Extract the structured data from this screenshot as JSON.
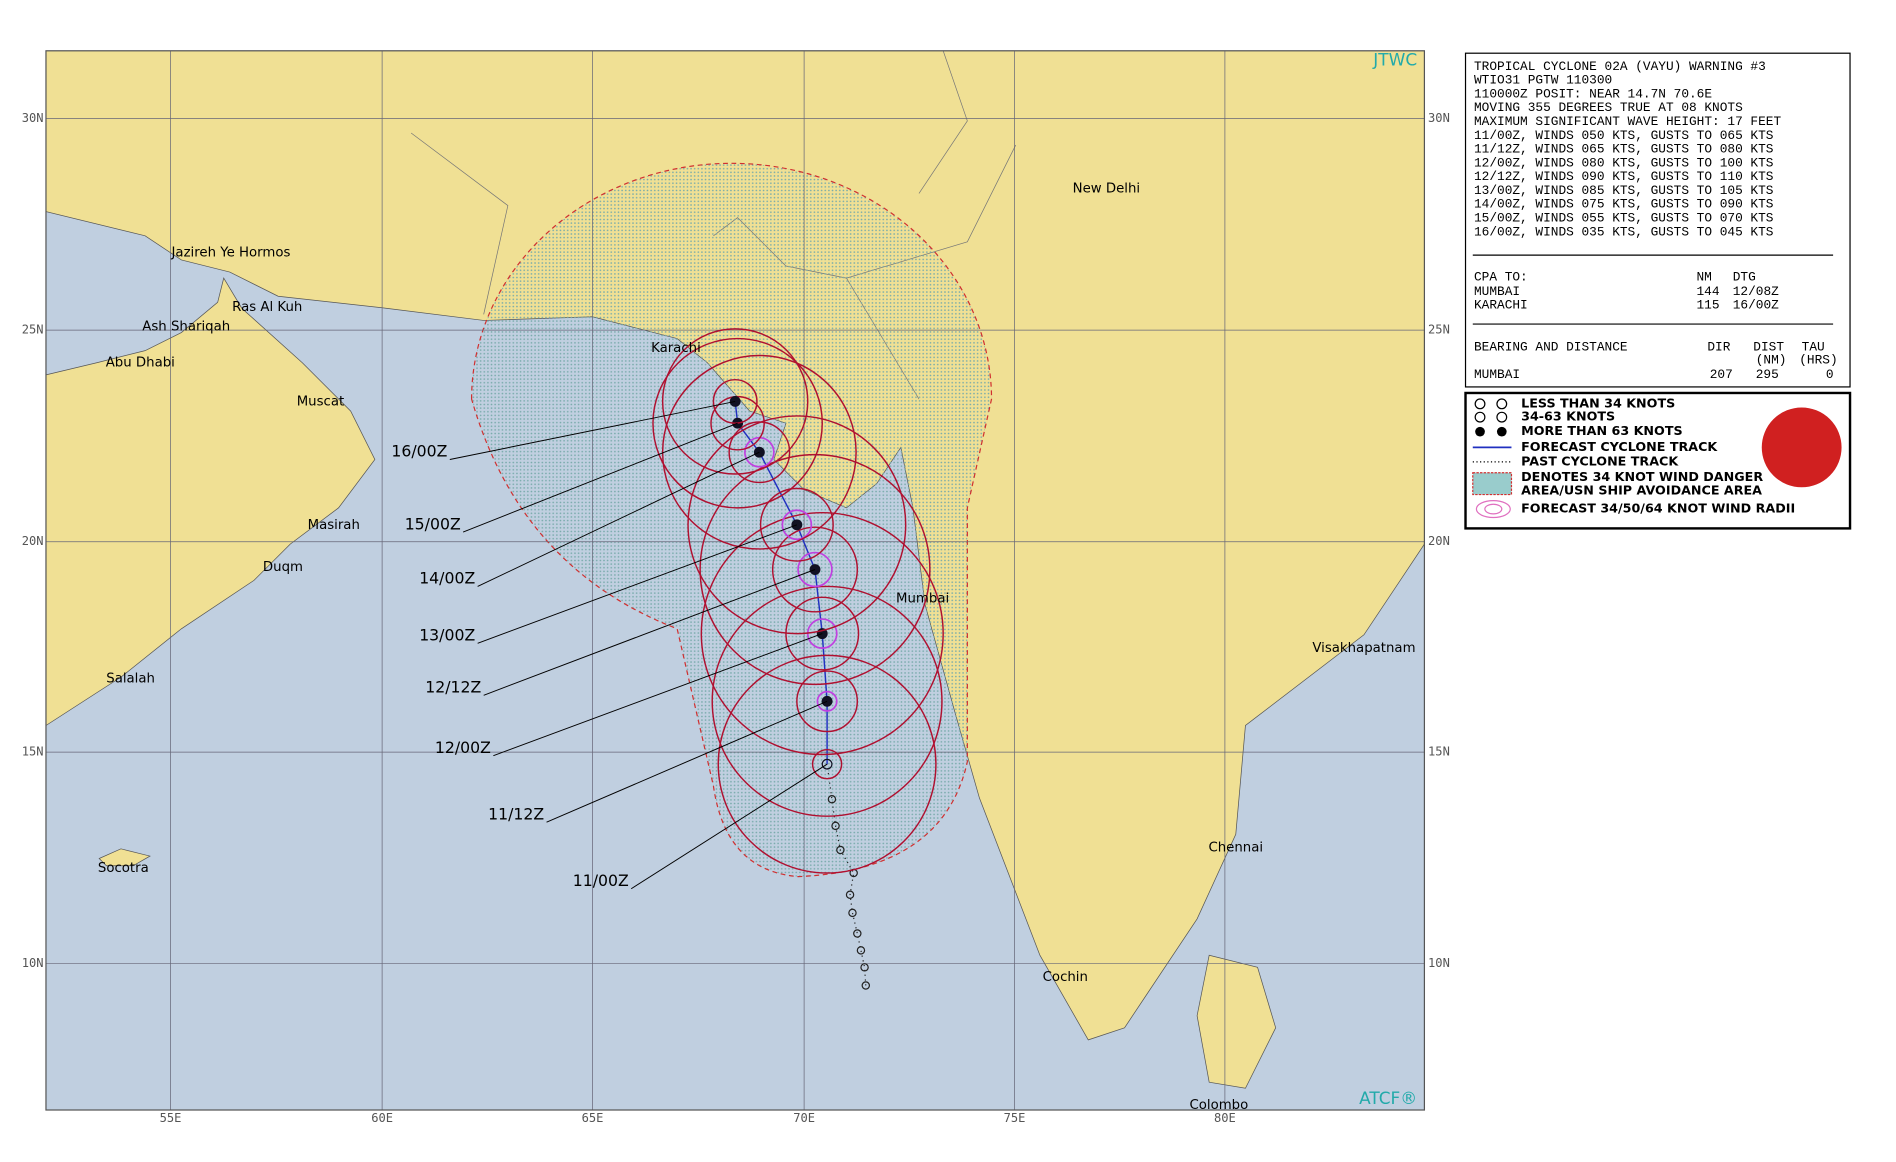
{
  "map": {
    "agency": "JTWC",
    "system": "ATCF®",
    "lat_labels": [
      "30N",
      "25N",
      "20N",
      "15N",
      "10N"
    ],
    "lon_labels": [
      "55E",
      "60E",
      "65E",
      "70E",
      "75E",
      "80E"
    ],
    "places": [
      "Jazireh Ye Hormos",
      "Ras Al Kuh",
      "Ash Shariqah",
      "Abu Dhabi",
      "Muscat",
      "Masirah",
      "Duqm",
      "Salalah",
      "Socotra",
      "Karachi",
      "New Delhi",
      "Mumbai",
      "Visakhapatnam",
      "Chennai",
      "Cochin",
      "Colombo"
    ],
    "forecast_labels": [
      "11/00Z",
      "11/12Z",
      "12/00Z",
      "12/12Z",
      "13/00Z",
      "14/00Z",
      "15/00Z",
      "16/00Z"
    ]
  },
  "warning": {
    "lines": [
      "TROPICAL CYCLONE 02A (VAYU) WARNING #3",
      "WTIO31 PGTW 110300",
      "110000Z POSIT: NEAR 14.7N 70.6E",
      "MOVING 355 DEGREES TRUE AT 08 KNOTS",
      "MAXIMUM SIGNIFICANT WAVE HEIGHT: 17 FEET",
      "11/00Z, WINDS 050 KTS, GUSTS TO 065 KTS",
      "11/12Z, WINDS 065 KTS, GUSTS TO 080 KTS",
      "12/00Z, WINDS 080 KTS, GUSTS TO 100 KTS",
      "12/12Z, WINDS 090 KTS, GUSTS TO 110 KTS",
      "13/00Z, WINDS 085 KTS, GUSTS TO 105 KTS",
      "14/00Z, WINDS 075 KTS, GUSTS TO 090 KTS",
      "15/00Z, WINDS 055 KTS, GUSTS TO 070 KTS",
      "16/00Z, WINDS 035 KTS, GUSTS TO 045 KTS"
    ]
  },
  "cpa": {
    "header": [
      "CPA TO:",
      "NM",
      "DTG"
    ],
    "rows": [
      [
        "MUMBAI",
        "144",
        "12/08Z"
      ],
      [
        "KARACHI",
        "115",
        "16/00Z"
      ]
    ]
  },
  "bearing": {
    "header": [
      "BEARING AND DISTANCE",
      "DIR",
      "DIST",
      "TAU"
    ],
    "units": [
      "(NM)",
      "(HRS)"
    ],
    "rows": [
      [
        "MUMBAI",
        "207",
        "295",
        "0"
      ]
    ]
  },
  "legend": [
    "LESS THAN 34 KNOTS",
    "34-63 KNOTS",
    "MORE THAN 63 KNOTS",
    "FORECAST CYCLONE TRACK",
    "PAST CYCLONE TRACK",
    "DENOTES 34 KNOT WIND DANGER",
    "AREA/USN SHIP AVOIDANCE AREA",
    "FORECAST 34/50/64 KNOT WIND RADII"
  ]
}
